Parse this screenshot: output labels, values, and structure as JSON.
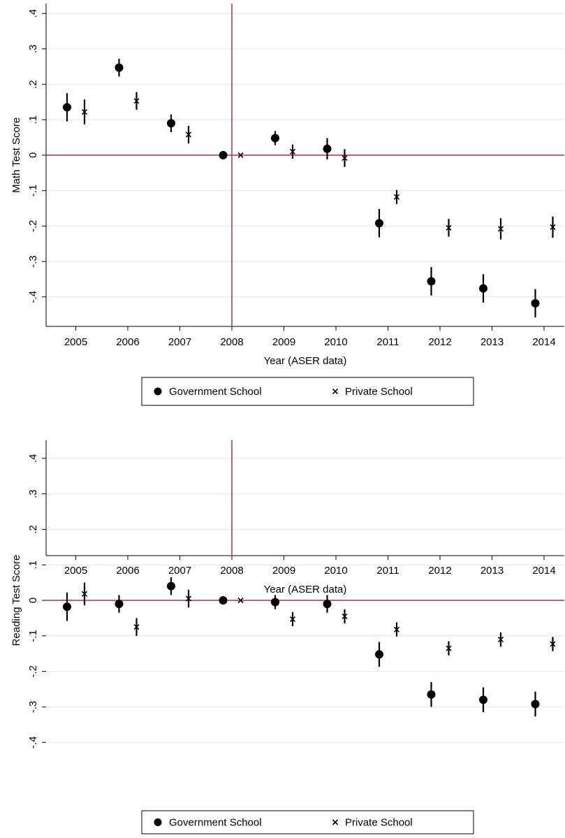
{
  "chart_data": [
    {
      "type": "scatter",
      "title": "",
      "xlabel": "Year   (ASER data)",
      "ylabel": "Math Test Score",
      "ylim": [
        -0.45,
        0.42
      ],
      "y_ticks": [
        ".4",
        ".3",
        ".2",
        ".1",
        "0",
        "-.1",
        "-.2",
        "-.3",
        "-.4"
      ],
      "x_ticks": [
        "2005",
        "2006",
        "2007",
        "2008",
        "2009",
        "2010",
        "2011",
        "2012",
        "2013",
        "2014"
      ],
      "reference_lines": {
        "x": 2008,
        "y": 0,
        "color": "#a8324f"
      },
      "grid": true,
      "legend_position": "bottom",
      "series": [
        {
          "name": "Government School",
          "marker": "circle",
          "x": [
            2005,
            2006,
            2007,
            2008,
            2009,
            2010,
            2011,
            2012,
            2013,
            2014
          ],
          "values": [
            0.135,
            0.247,
            0.09,
            0.0,
            0.048,
            0.018,
            -0.192,
            -0.356,
            -0.376,
            -0.418
          ],
          "ci_low": [
            0.095,
            0.222,
            0.065,
            0.0,
            0.028,
            -0.012,
            -0.232,
            -0.396,
            -0.416,
            -0.458
          ],
          "ci_high": [
            0.175,
            0.272,
            0.115,
            0.0,
            0.068,
            0.048,
            -0.152,
            -0.316,
            -0.336,
            -0.378
          ]
        },
        {
          "name": "Private School",
          "marker": "x",
          "x": [
            2005,
            2006,
            2007,
            2008,
            2009,
            2010,
            2011,
            2012,
            2013,
            2014
          ],
          "values": [
            0.122,
            0.153,
            0.058,
            0.0,
            0.01,
            -0.008,
            -0.118,
            -0.205,
            -0.208,
            -0.203
          ],
          "ci_low": [
            0.087,
            0.128,
            0.033,
            0.0,
            -0.01,
            -0.033,
            -0.138,
            -0.23,
            -0.238,
            -0.233
          ],
          "ci_high": [
            0.157,
            0.178,
            0.083,
            0.0,
            0.03,
            0.017,
            -0.098,
            -0.18,
            -0.178,
            -0.173
          ]
        }
      ]
    },
    {
      "type": "scatter",
      "title": "",
      "xlabel": "Year   (ASER data)",
      "ylabel": "Reading Test Score",
      "ylim": [
        -0.45,
        0.42
      ],
      "y_ticks": [
        ".4",
        ".3",
        ".2",
        ".1",
        "0",
        "-.1",
        "-.2",
        "-.3",
        "-.4"
      ],
      "x_ticks": [
        "2005",
        "2006",
        "2007",
        "2008",
        "2009",
        "2010",
        "2011",
        "2012",
        "2013",
        "2014"
      ],
      "reference_lines": {
        "x": 2008,
        "y": 0,
        "color": "#a8324f"
      },
      "grid": true,
      "legend_position": "bottom",
      "series": [
        {
          "name": "Government School",
          "marker": "circle",
          "x": [
            2005,
            2006,
            2007,
            2008,
            2009,
            2010,
            2011,
            2012,
            2013,
            2014
          ],
          "values": [
            -0.018,
            -0.01,
            0.04,
            0.0,
            -0.005,
            -0.01,
            -0.152,
            -0.265,
            -0.28,
            -0.292
          ],
          "ci_low": [
            -0.058,
            -0.035,
            0.015,
            0.0,
            -0.025,
            -0.035,
            -0.187,
            -0.3,
            -0.315,
            -0.327
          ],
          "ci_high": [
            0.022,
            0.015,
            0.065,
            0.0,
            0.015,
            0.015,
            -0.117,
            -0.23,
            -0.245,
            -0.257
          ]
        },
        {
          "name": "Private School",
          "marker": "x",
          "x": [
            2005,
            2006,
            2007,
            2008,
            2009,
            2010,
            2011,
            2012,
            2013,
            2014
          ],
          "values": [
            0.018,
            -0.075,
            0.005,
            0.0,
            -0.053,
            -0.045,
            -0.082,
            -0.135,
            -0.11,
            -0.123
          ],
          "ci_low": [
            -0.014,
            -0.1,
            -0.02,
            0.0,
            -0.073,
            -0.065,
            -0.102,
            -0.155,
            -0.13,
            -0.143
          ],
          "ci_high": [
            0.05,
            -0.05,
            0.03,
            0.0,
            -0.033,
            -0.025,
            -0.062,
            -0.115,
            -0.09,
            -0.103
          ]
        }
      ]
    }
  ]
}
